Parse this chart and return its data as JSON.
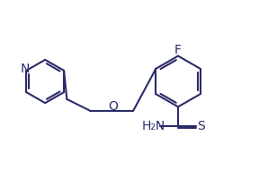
{
  "bg_color": "#ffffff",
  "line_color": "#2b2b6b",
  "line_width": 1.5,
  "font_size": 10,
  "figsize": [
    2.88,
    1.99
  ],
  "dpi": 100,
  "atoms": {
    "N_label": "N",
    "O_label": "O",
    "F_label": "F",
    "NH2_label": "H₂N",
    "S_label": "S"
  }
}
